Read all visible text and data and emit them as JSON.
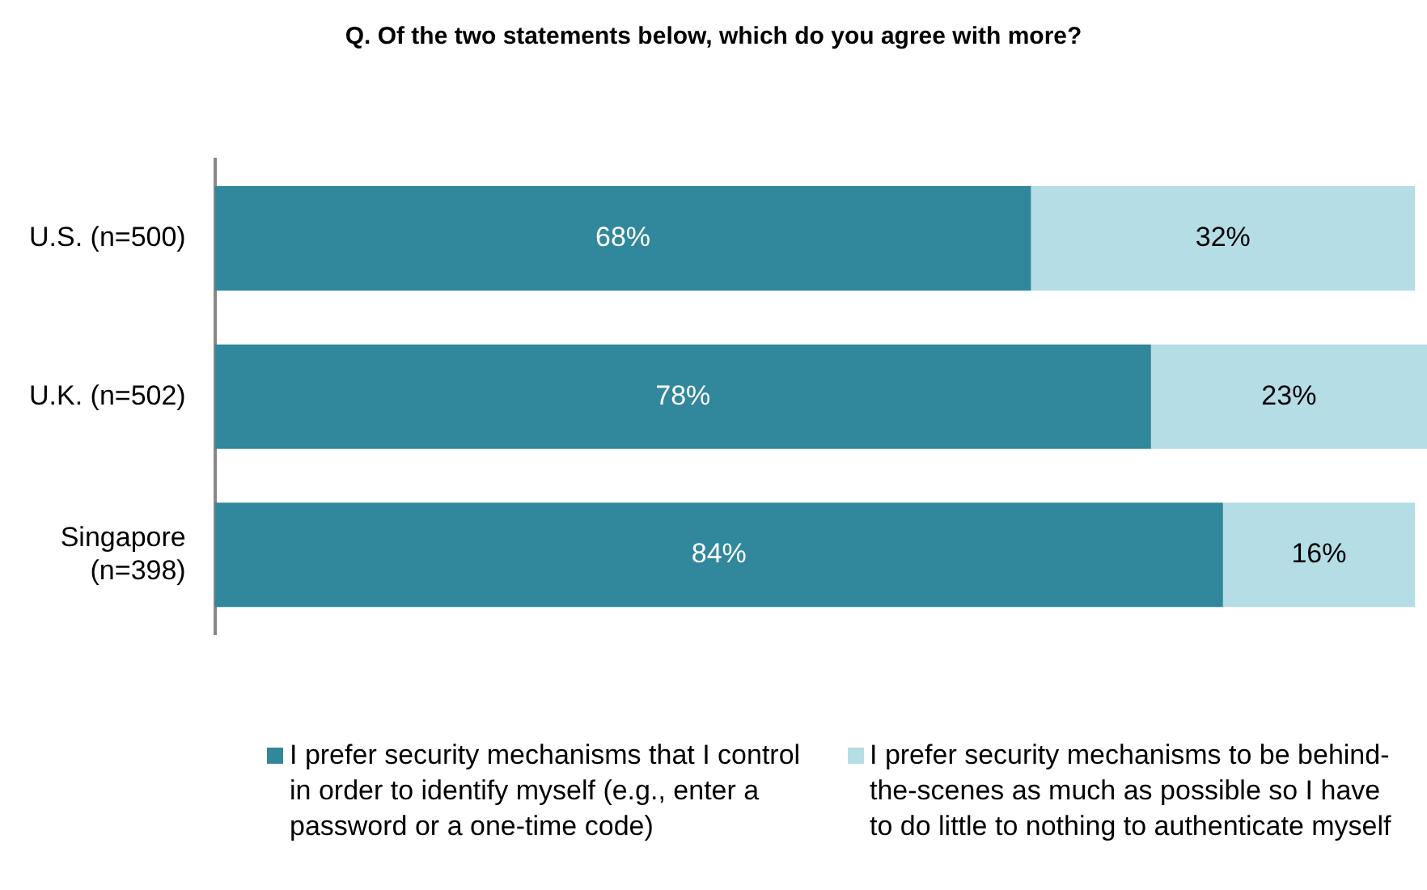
{
  "chart_data": {
    "type": "bar",
    "orientation": "horizontal",
    "stacked": true,
    "title": "Q. Of the two statements below, which do you agree with more?",
    "categories": [
      "U.S. (n=500)",
      "U.K. (n=502)",
      "Singapore (n=398)"
    ],
    "series": [
      {
        "name": "I prefer security mechanisms that I control in order to identify myself (e.g., enter a password or a one-time code)",
        "color": "#31879b",
        "values": [
          68,
          78,
          84
        ],
        "value_labels": [
          "68%",
          "78%",
          "84%"
        ]
      },
      {
        "name": "I prefer security mechanisms to be behind-the-scenes as much as possible so I have to do little to nothing to authenticate myself",
        "color": "#b4dde6",
        "values": [
          32,
          23,
          16
        ],
        "value_labels": [
          "32%",
          "23%",
          "16%"
        ]
      }
    ],
    "legend": "bottom"
  }
}
